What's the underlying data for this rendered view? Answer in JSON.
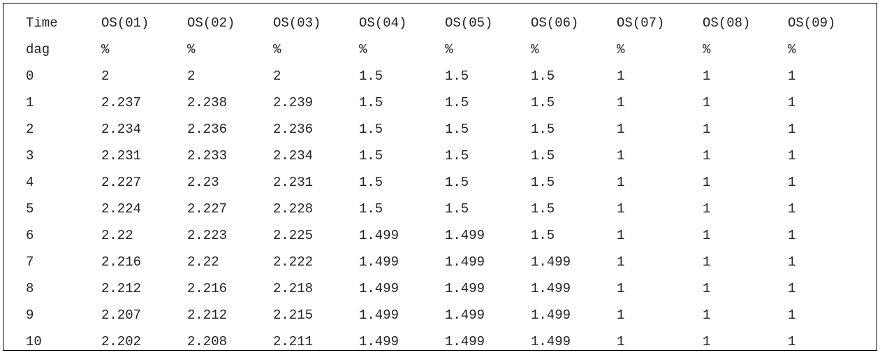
{
  "table": {
    "header": [
      "Time",
      "OS(01)",
      "OS(02)",
      "OS(03)",
      "OS(04)",
      "OS(05)",
      "OS(06)",
      "OS(07)",
      "OS(08)",
      "OS(09)"
    ],
    "units": [
      "dag",
      "%",
      "%",
      "%",
      "%",
      "%",
      "%",
      "%",
      "%",
      "%"
    ],
    "rows": [
      [
        "0",
        "2",
        "2",
        "2",
        "1.5",
        "1.5",
        "1.5",
        "1",
        "1",
        "1"
      ],
      [
        "1",
        "2.237",
        "2.238",
        "2.239",
        "1.5",
        "1.5",
        "1.5",
        "1",
        "1",
        "1"
      ],
      [
        "2",
        "2.234",
        "2.236",
        "2.236",
        "1.5",
        "1.5",
        "1.5",
        "1",
        "1",
        "1"
      ],
      [
        "3",
        "2.231",
        "2.233",
        "2.234",
        "1.5",
        "1.5",
        "1.5",
        "1",
        "1",
        "1"
      ],
      [
        "4",
        "2.227",
        "2.23",
        "2.231",
        "1.5",
        "1.5",
        "1.5",
        "1",
        "1",
        "1"
      ],
      [
        "5",
        "2.224",
        "2.227",
        "2.228",
        "1.5",
        "1.5",
        "1.5",
        "1",
        "1",
        "1"
      ],
      [
        "6",
        "2.22",
        "2.223",
        "2.225",
        "1.499",
        "1.499",
        "1.5",
        "1",
        "1",
        "1"
      ],
      [
        "7",
        "2.216",
        "2.22",
        "2.222",
        "1.499",
        "1.499",
        "1.499",
        "1",
        "1",
        "1"
      ],
      [
        "8",
        "2.212",
        "2.216",
        "2.218",
        "1.499",
        "1.499",
        "1.499",
        "1",
        "1",
        "1"
      ],
      [
        "9",
        "2.207",
        "2.212",
        "2.215",
        "1.499",
        "1.499",
        "1.499",
        "1",
        "1",
        "1"
      ],
      [
        "10",
        "2.202",
        "2.208",
        "2.211",
        "1.499",
        "1.499",
        "1.499",
        "1",
        "1",
        "1"
      ]
    ]
  }
}
